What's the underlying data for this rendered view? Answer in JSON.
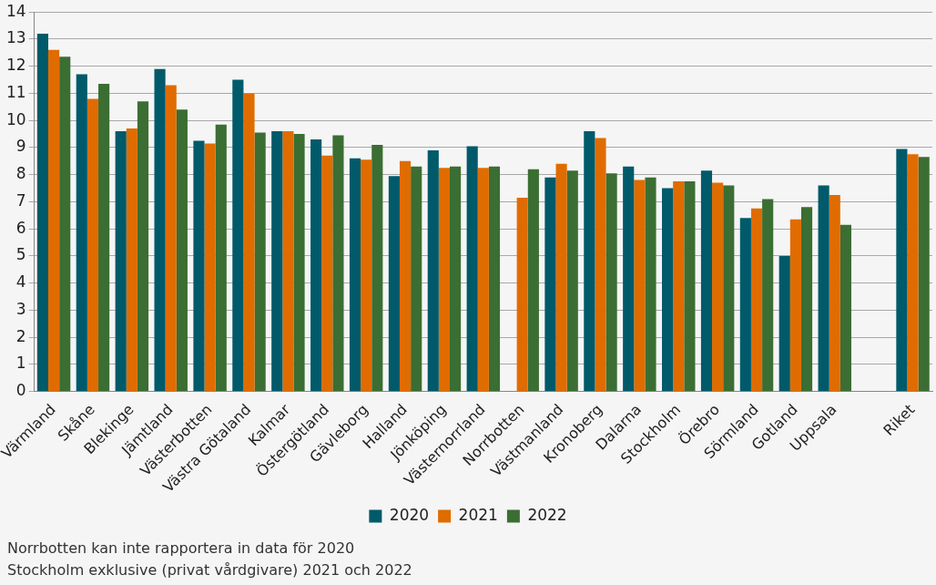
{
  "chart_data": {
    "type": "bar",
    "categories": [
      "Värmland",
      "Skåne",
      "Blekinge",
      "Jämtland",
      "Västerbotten",
      "Västra Götaland",
      "Kalmar",
      "Östergötland",
      "Gävleborg",
      "Halland",
      "Jönköping",
      "Västernorrland",
      "Norrbotten",
      "Västmanland",
      "Kronoberg",
      "Dalarna",
      "Stockholm",
      "Örebro",
      "Sörmland",
      "Gotland",
      "Uppsala",
      null,
      "Riket"
    ],
    "series": [
      {
        "name": "2020",
        "color": "#005a6a",
        "values": [
          13.2,
          11.7,
          9.6,
          11.9,
          9.25,
          11.5,
          9.6,
          9.3,
          8.6,
          7.95,
          8.9,
          9.05,
          null,
          7.9,
          9.6,
          8.3,
          7.5,
          8.15,
          6.4,
          5.0,
          7.6,
          null,
          8.95
        ]
      },
      {
        "name": "2021",
        "color": "#e06c00",
        "values": [
          12.6,
          10.8,
          9.7,
          11.3,
          9.15,
          11.0,
          9.6,
          8.7,
          8.55,
          8.5,
          8.25,
          8.25,
          7.15,
          8.4,
          9.35,
          7.8,
          7.75,
          7.7,
          6.75,
          6.35,
          7.25,
          null,
          8.75
        ]
      },
      {
        "name": "2022",
        "color": "#3b6e33",
        "values": [
          12.35,
          11.35,
          10.7,
          10.4,
          9.85,
          9.55,
          9.5,
          9.45,
          9.1,
          8.3,
          8.3,
          8.3,
          8.2,
          8.15,
          8.05,
          7.9,
          7.75,
          7.6,
          7.1,
          6.8,
          6.15,
          null,
          8.65
        ]
      }
    ],
    "ylim": [
      0,
      14
    ],
    "yticks": [
      0,
      1,
      2,
      3,
      4,
      5,
      6,
      7,
      8,
      9,
      10,
      11,
      12,
      13,
      14
    ],
    "grid": "y",
    "legend": "bottom",
    "annotations": [
      "Norrbotten kan inte rapportera in data för 2020",
      "Stockholm exklusive (privat vårdgivare) 2021 och 2022"
    ]
  }
}
